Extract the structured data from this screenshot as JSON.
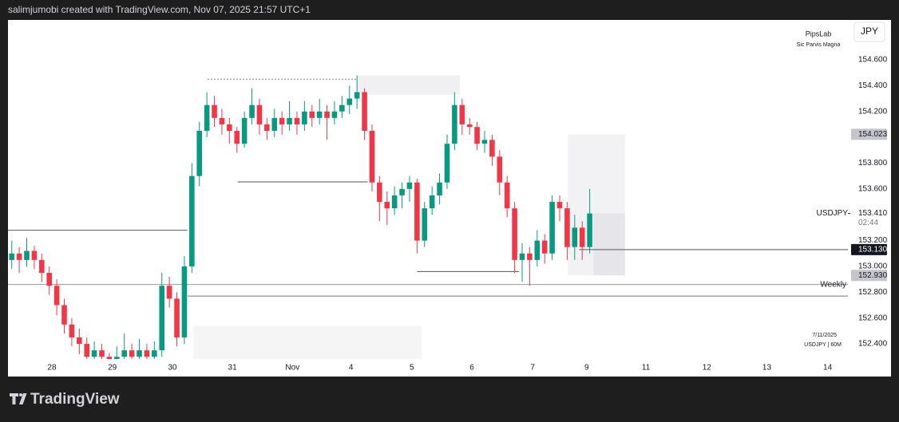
{
  "chart_data": {
    "type": "candlestick",
    "header": "salimjumobi created with TradingView.com, Nov 07, 2025 21:57 UTC+1",
    "brand": "TradingView",
    "currency": "JPY",
    "watermark_title": "PipsLab",
    "watermark_subtitle": "Sic Parvis Magna",
    "footer_date": "7/11/2025",
    "footer_symbol": "USDJPY | 60M",
    "up_color": "#089981",
    "down_color": "#f23645",
    "xlim": [
      -0.5,
      111.4
    ],
    "ylim": [
      152.283,
      154.909
    ],
    "xticks": [
      {
        "value": 5.35,
        "label": "28"
      },
      {
        "value": 13.4,
        "label": "29"
      },
      {
        "value": 21.4,
        "label": "30"
      },
      {
        "value": 29.4,
        "label": "31"
      },
      {
        "value": 37.4,
        "label": "Nov"
      },
      {
        "value": 45.2,
        "label": "4"
      },
      {
        "value": 53.3,
        "label": "5"
      },
      {
        "value": 61.3,
        "label": "6"
      },
      {
        "value": 69.4,
        "label": "7"
      },
      {
        "value": 76.6,
        "label": "9"
      },
      {
        "value": 84.5,
        "label": "11"
      },
      {
        "value": 92.6,
        "label": "12"
      },
      {
        "value": 100.6,
        "label": "13"
      },
      {
        "value": 108.7,
        "label": "14"
      }
    ],
    "yticks": [
      {
        "value": 154.6,
        "label": "154.600"
      },
      {
        "value": 154.4,
        "label": "154.400"
      },
      {
        "value": 154.2,
        "label": "154.200"
      },
      {
        "value": 153.8,
        "label": "153.800"
      },
      {
        "value": 153.6,
        "label": "153.600"
      },
      {
        "value": 153.2,
        "label": "153.200"
      },
      {
        "value": 153.0,
        "label": "153.000"
      },
      {
        "value": 152.8,
        "label": "152.800"
      },
      {
        "value": 152.6,
        "label": "152.600"
      },
      {
        "value": 152.4,
        "label": "152.400"
      }
    ],
    "candles": [
      [
        153.05,
        153.2,
        152.98,
        153.1
      ],
      [
        153.1,
        153.15,
        152.95,
        153.05
      ],
      [
        153.05,
        153.22,
        153.0,
        153.12
      ],
      [
        153.12,
        153.16,
        152.98,
        153.05
      ],
      [
        153.05,
        153.1,
        152.88,
        152.95
      ],
      [
        152.95,
        153.0,
        152.78,
        152.85
      ],
      [
        152.85,
        152.9,
        152.62,
        152.7
      ],
      [
        152.7,
        152.75,
        152.48,
        152.55
      ],
      [
        152.55,
        152.6,
        152.38,
        152.45
      ],
      [
        152.45,
        152.52,
        152.32,
        152.4
      ],
      [
        152.4,
        152.45,
        152.22,
        152.3
      ],
      [
        152.3,
        152.42,
        152.25,
        152.35
      ],
      [
        152.35,
        152.4,
        152.22,
        152.3
      ],
      [
        152.3,
        152.33,
        152.18,
        152.25
      ],
      [
        152.25,
        152.38,
        152.2,
        152.3
      ],
      [
        152.3,
        152.48,
        152.25,
        152.35
      ],
      [
        152.35,
        152.4,
        152.22,
        152.3
      ],
      [
        152.3,
        152.44,
        152.25,
        152.35
      ],
      [
        152.35,
        152.4,
        152.22,
        152.3
      ],
      [
        152.3,
        152.42,
        152.25,
        152.35
      ],
      [
        152.35,
        152.95,
        152.3,
        152.85
      ],
      [
        152.85,
        152.92,
        152.68,
        152.75
      ],
      [
        152.75,
        152.8,
        152.38,
        152.45
      ],
      [
        152.45,
        153.08,
        152.4,
        153.0
      ],
      [
        153.0,
        153.8,
        152.95,
        153.7
      ],
      [
        153.7,
        154.12,
        153.62,
        154.05
      ],
      [
        154.05,
        154.35,
        154.0,
        154.25
      ],
      [
        154.25,
        154.32,
        154.08,
        154.15
      ],
      [
        154.15,
        154.22,
        154.02,
        154.1
      ],
      [
        154.1,
        154.15,
        153.95,
        154.05
      ],
      [
        154.05,
        154.08,
        153.88,
        153.95
      ],
      [
        153.95,
        154.2,
        153.92,
        154.15
      ],
      [
        154.15,
        154.38,
        154.1,
        154.25
      ],
      [
        154.25,
        154.3,
        154.02,
        154.1
      ],
      [
        154.1,
        154.15,
        153.98,
        154.05
      ],
      [
        154.05,
        154.22,
        154.0,
        154.15
      ],
      [
        154.15,
        154.2,
        154.02,
        154.1
      ],
      [
        154.1,
        154.28,
        154.05,
        154.15
      ],
      [
        154.15,
        154.2,
        154.02,
        154.1
      ],
      [
        154.1,
        154.28,
        154.05,
        154.2
      ],
      [
        154.2,
        154.25,
        154.08,
        154.15
      ],
      [
        154.15,
        154.3,
        154.1,
        154.2
      ],
      [
        154.2,
        154.25,
        153.98,
        154.15
      ],
      [
        154.15,
        154.28,
        154.1,
        154.2
      ],
      [
        154.2,
        154.32,
        154.15,
        154.25
      ],
      [
        154.25,
        154.4,
        154.18,
        154.3
      ],
      [
        154.3,
        154.48,
        154.22,
        154.35
      ],
      [
        154.35,
        154.38,
        153.98,
        154.05
      ],
      [
        154.05,
        154.1,
        153.58,
        153.65
      ],
      [
        153.65,
        153.7,
        153.35,
        153.5
      ],
      [
        153.5,
        153.58,
        153.32,
        153.45
      ],
      [
        153.45,
        153.62,
        153.4,
        153.55
      ],
      [
        153.55,
        153.65,
        153.45,
        153.6
      ],
      [
        153.6,
        153.7,
        153.5,
        153.65
      ],
      [
        153.65,
        153.68,
        153.1,
        153.2
      ],
      [
        153.2,
        153.5,
        153.15,
        153.45
      ],
      [
        153.45,
        153.62,
        153.4,
        153.55
      ],
      [
        153.55,
        153.72,
        153.48,
        153.65
      ],
      [
        153.65,
        154.02,
        153.6,
        153.95
      ],
      [
        153.95,
        154.35,
        153.9,
        154.25
      ],
      [
        154.25,
        154.3,
        154.02,
        154.1
      ],
      [
        154.1,
        154.15,
        154.02,
        154.08
      ],
      [
        154.08,
        154.12,
        153.9,
        153.95
      ],
      [
        153.95,
        154.05,
        153.88,
        153.98
      ],
      [
        153.98,
        154.02,
        153.78,
        153.85
      ],
      [
        153.85,
        153.9,
        153.55,
        153.65
      ],
      [
        153.65,
        153.7,
        153.38,
        153.45
      ],
      [
        153.45,
        153.5,
        152.95,
        153.05
      ],
      [
        153.05,
        153.18,
        152.88,
        153.1
      ],
      [
        153.1,
        153.15,
        152.85,
        153.05
      ],
      [
        153.05,
        153.28,
        153.0,
        153.2
      ],
      [
        153.2,
        153.25,
        153.02,
        153.1
      ],
      [
        153.1,
        153.55,
        153.05,
        153.5
      ],
      [
        153.5,
        153.55,
        153.35,
        153.45
      ],
      [
        153.45,
        153.5,
        153.05,
        153.15
      ],
      [
        153.15,
        153.4,
        153.05,
        153.3
      ],
      [
        153.3,
        153.35,
        153.05,
        153.15
      ],
      [
        153.15,
        153.6,
        153.1,
        153.41
      ]
    ],
    "boxes": [
      {
        "x": [
          46.0,
          59.7
        ],
        "y": [
          154.33,
          154.48
        ],
        "color": "#f0f0f2"
      },
      {
        "x": [
          24.2,
          54.6
        ],
        "y": [
          152.2,
          152.54
        ],
        "color": "#f5f5f6"
      },
      {
        "x": [
          74.1,
          81.7
        ],
        "y": [
          152.93,
          154.023
        ],
        "color": "#f2f2f4"
      },
      {
        "x": [
          77.5,
          81.7
        ],
        "y": [
          152.93,
          153.41
        ],
        "color": "#e6e6ea"
      }
    ],
    "hlines": [
      {
        "value": 153.28,
        "x": [
          -0.5,
          23.4
        ],
        "color": "#555"
      },
      {
        "value": 152.86,
        "x": [
          -0.5,
          111.4
        ],
        "color": "#999",
        "label": "Weekly"
      },
      {
        "value": 152.77,
        "x": [
          23.4,
          111.4
        ],
        "color": "#777"
      },
      {
        "value": 153.655,
        "x": [
          30.1,
          47.4
        ],
        "color": "#555"
      },
      {
        "value": 152.96,
        "x": [
          54.0,
          67.6
        ],
        "color": "#555"
      },
      {
        "value": 154.45,
        "x": [
          26.1,
          46.0
        ],
        "color": "#888",
        "dashed": true
      },
      {
        "value": 153.13,
        "x": [
          75.6,
          111.4
        ],
        "color": "#555"
      }
    ],
    "price_labels": [
      {
        "value": 154.023,
        "label": "154.023",
        "style": "grey"
      },
      {
        "value": 153.41,
        "label": "153.410",
        "style": "plain",
        "name": "USDJPY",
        "countdown": "02:44"
      },
      {
        "value": 153.13,
        "label": "153.130",
        "style": "black"
      },
      {
        "value": 152.93,
        "label": "152.930",
        "style": "grey"
      }
    ]
  }
}
